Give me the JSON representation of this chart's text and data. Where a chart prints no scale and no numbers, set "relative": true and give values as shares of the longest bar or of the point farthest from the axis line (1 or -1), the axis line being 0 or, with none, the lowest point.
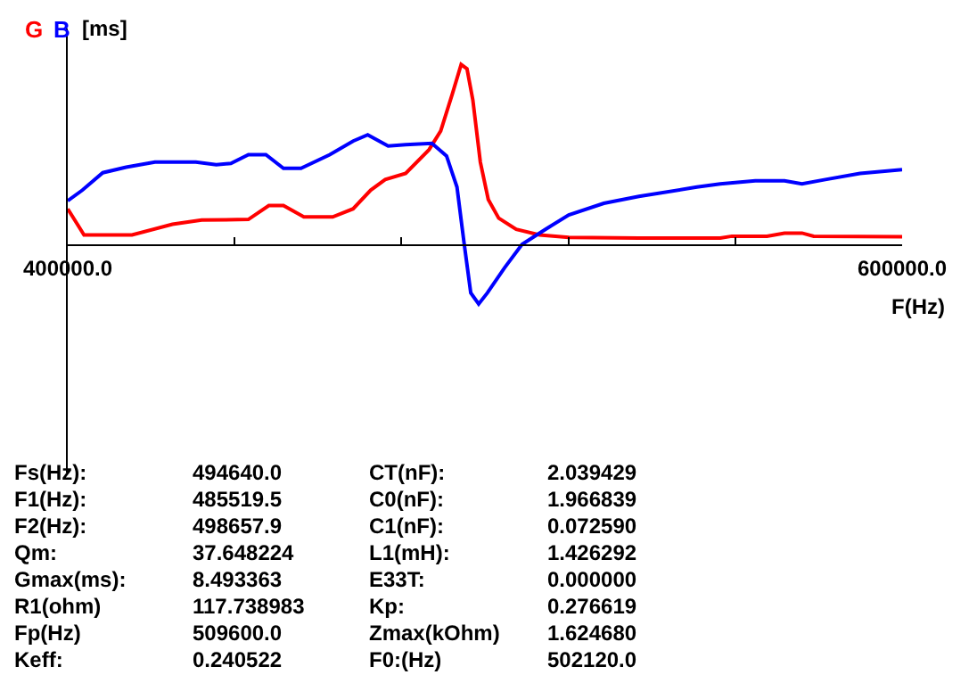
{
  "chart_data": {
    "type": "line",
    "relative": true,
    "xlabel": "F(Hz)",
    "ylabel": "[ms]",
    "xlim": [
      400000,
      600000
    ],
    "xticks": [
      {
        "value": 400000,
        "label": "400000.0"
      },
      {
        "value": 440000,
        "label": null
      },
      {
        "value": 480000,
        "label": null
      },
      {
        "value": 520000,
        "label": null
      },
      {
        "value": 560000,
        "label": null
      },
      {
        "value": 600000,
        "label": "600000.0"
      }
    ],
    "series": [
      {
        "name": "G",
        "color": "#ff0000",
        "x": [
          400000,
          403900,
          415400,
          425100,
          432100,
          443300,
          448200,
          451700,
          456600,
          463500,
          468400,
          472600,
          476100,
          481000,
          486600,
          489400,
          492200,
          494300,
          495700,
          497100,
          498900,
          500800,
          503300,
          507500,
          513100,
          520100,
          536900,
          556400,
          559200,
          567600,
          571800,
          576000,
          578800,
          600000
        ],
        "values": [
          0.197,
          0.052,
          0.052,
          0.111,
          0.135,
          0.138,
          0.215,
          0.215,
          0.152,
          0.152,
          0.197,
          0.301,
          0.36,
          0.394,
          0.526,
          0.63,
          0.837,
          1,
          0.976,
          0.803,
          0.457,
          0.249,
          0.145,
          0.083,
          0.052,
          0.038,
          0.035,
          0.035,
          0.045,
          0.045,
          0.062,
          0.062,
          0.045,
          0.042
        ]
      },
      {
        "name": "B",
        "color": "#0000ff",
        "x": [
          400000,
          403500,
          408400,
          414000,
          420900,
          430700,
          435600,
          439100,
          443300,
          447500,
          451700,
          455900,
          462800,
          468400,
          471900,
          476800,
          481000,
          487300,
          490800,
          493300,
          495000,
          496600,
          498500,
          500600,
          504700,
          508900,
          514500,
          520100,
          528500,
          536900,
          550800,
          556400,
          564800,
          571800,
          576000,
          581600,
          589900,
          600000
        ],
        "values": [
          0.242,
          0.301,
          0.398,
          0.429,
          0.457,
          0.457,
          0.443,
          0.45,
          0.498,
          0.498,
          0.422,
          0.422,
          0.498,
          0.574,
          0.609,
          0.547,
          0.554,
          0.561,
          0.491,
          0.318,
          0.007,
          -0.27,
          -0.332,
          -0.27,
          -0.131,
          0,
          0.083,
          0.163,
          0.228,
          0.266,
          0.318,
          0.336,
          0.353,
          0.353,
          0.336,
          0.36,
          0.394,
          0.415
        ]
      }
    ],
    "annotations": [
      "Fs(Hz):",
      "494640.0",
      "CT(nF):",
      "2.039429",
      "F1(Hz):",
      "485519.5",
      "C0(nF):",
      "1.966839",
      "F2(Hz):",
      "498657.9",
      "C1(nF):",
      "0.072590",
      "Qm:",
      "37.648224",
      "L1(mH):",
      "1.426292",
      "Gmax(ms):",
      "8.493363",
      "E33T:",
      "0.000000",
      "R1(ohm)",
      "117.738983",
      "Kp:",
      "0.276619",
      "Fp(Hz)",
      "509600.0",
      "Zmax(kOhm)",
      "1.624680",
      "Keff:",
      "0.240522",
      "F0:(Hz)",
      "502120.0"
    ]
  }
}
